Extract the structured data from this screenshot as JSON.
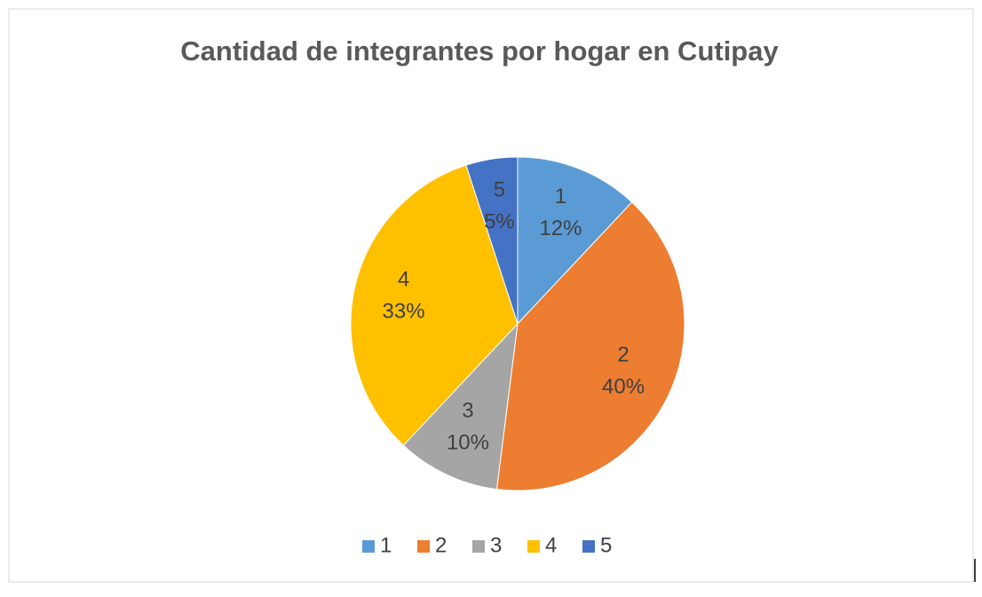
{
  "chart_data": {
    "type": "pie",
    "title": "Cantidad de integrantes por hogar en Cutipay",
    "categories": [
      "1",
      "2",
      "3",
      "4",
      "5"
    ],
    "values": [
      12,
      40,
      10,
      33,
      5
    ],
    "value_labels": [
      "12%",
      "40%",
      "10%",
      "33%",
      "5%"
    ],
    "colors": [
      "#5b9bd5",
      "#ed7d31",
      "#a5a5a5",
      "#ffc000",
      "#4472c4"
    ],
    "legend": "bottom"
  }
}
